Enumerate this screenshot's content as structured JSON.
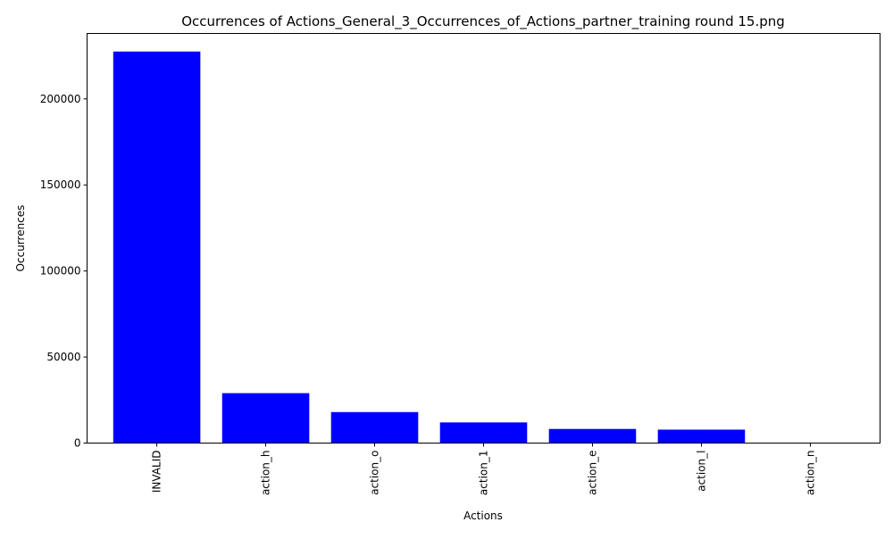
{
  "chart_data": {
    "type": "bar",
    "title": "Occurrences of Actions_General_3_Occurrences_of_Actions_partner_training round 15.png",
    "xlabel": "Actions",
    "ylabel": "Occurrences",
    "categories": [
      "INVALID",
      "action_h",
      "action_o",
      "action_1",
      "action_e",
      "action_l",
      "action_n"
    ],
    "values": [
      227500,
      29000,
      18000,
      12000,
      8200,
      7800,
      0
    ],
    "ylim": [
      0,
      238000
    ],
    "yticks": [
      0,
      50000,
      100000,
      150000,
      200000
    ],
    "ytick_labels": [
      "0",
      "50000",
      "100000",
      "150000",
      "200000"
    ],
    "x_tick_rotation": "vertical",
    "grid": false,
    "bar_color": "#0000ff"
  }
}
